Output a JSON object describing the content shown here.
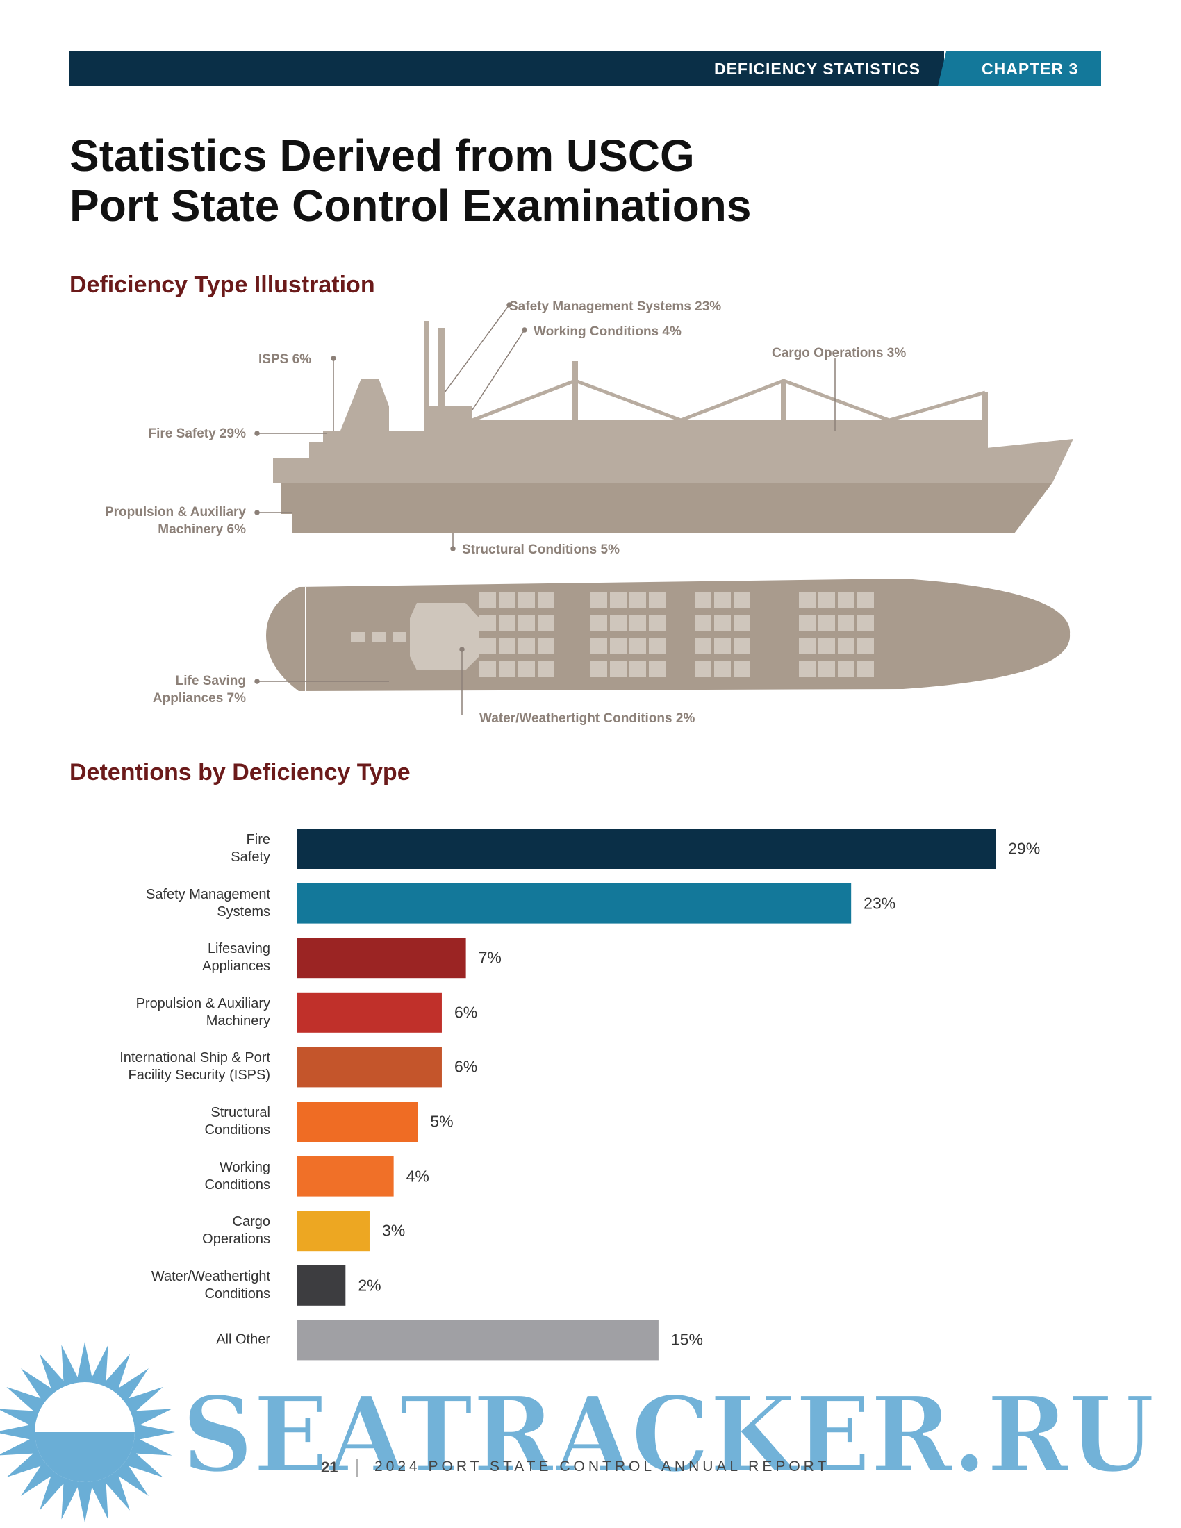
{
  "header": {
    "section": "DEFICIENCY STATISTICS",
    "chapter": "CHAPTER 3"
  },
  "title": [
    "Statistics Derived from USCG",
    "Port State Control Examinations"
  ],
  "illustration": {
    "heading": "Deficiency Type Illustration",
    "labels": [
      "Safety Management Systems 23%",
      "Working Conditions 4%",
      "Cargo Operations 3%",
      "ISPS 6%",
      "Fire Safety 29%",
      "Propulsion & Auxiliary\nMachinery 6%",
      "Structural Conditions 5%",
      "Life Saving\nAppliances 7%",
      "Water/Weathertight Conditions 2%"
    ]
  },
  "chart_data": {
    "type": "bar",
    "orientation": "horizontal",
    "title": "Detentions by Deficiency Type",
    "categories": [
      "Fire\nSafety",
      "Safety Management\nSystems",
      "Lifesaving\nAppliances",
      "Propulsion & Auxiliary\nMachinery",
      "International Ship & Port\nFacility Security (ISPS)",
      "Structural\nConditions",
      "Working\nConditions",
      "Cargo\nOperations",
      "Water/Weathertight\nConditions",
      "All Other"
    ],
    "values": [
      29,
      23,
      7,
      6,
      6,
      5,
      4,
      3,
      2,
      15
    ],
    "value_labels": [
      "29%",
      "23%",
      "7%",
      "6%",
      "6%",
      "5%",
      "4%",
      "3%",
      "2%",
      "15%"
    ],
    "colors": [
      "#0a2f47",
      "#13789a",
      "#9b2423",
      "#c0302a",
      "#c4552b",
      "#ef6c24",
      "#f07028",
      "#eda722",
      "#3d3d40",
      "#a0a0a4"
    ]
  },
  "footer": {
    "page": "21",
    "report": "2024 PORT STATE CONTROL ANNUAL REPORT"
  },
  "watermark": "SEATRACKER.RU"
}
